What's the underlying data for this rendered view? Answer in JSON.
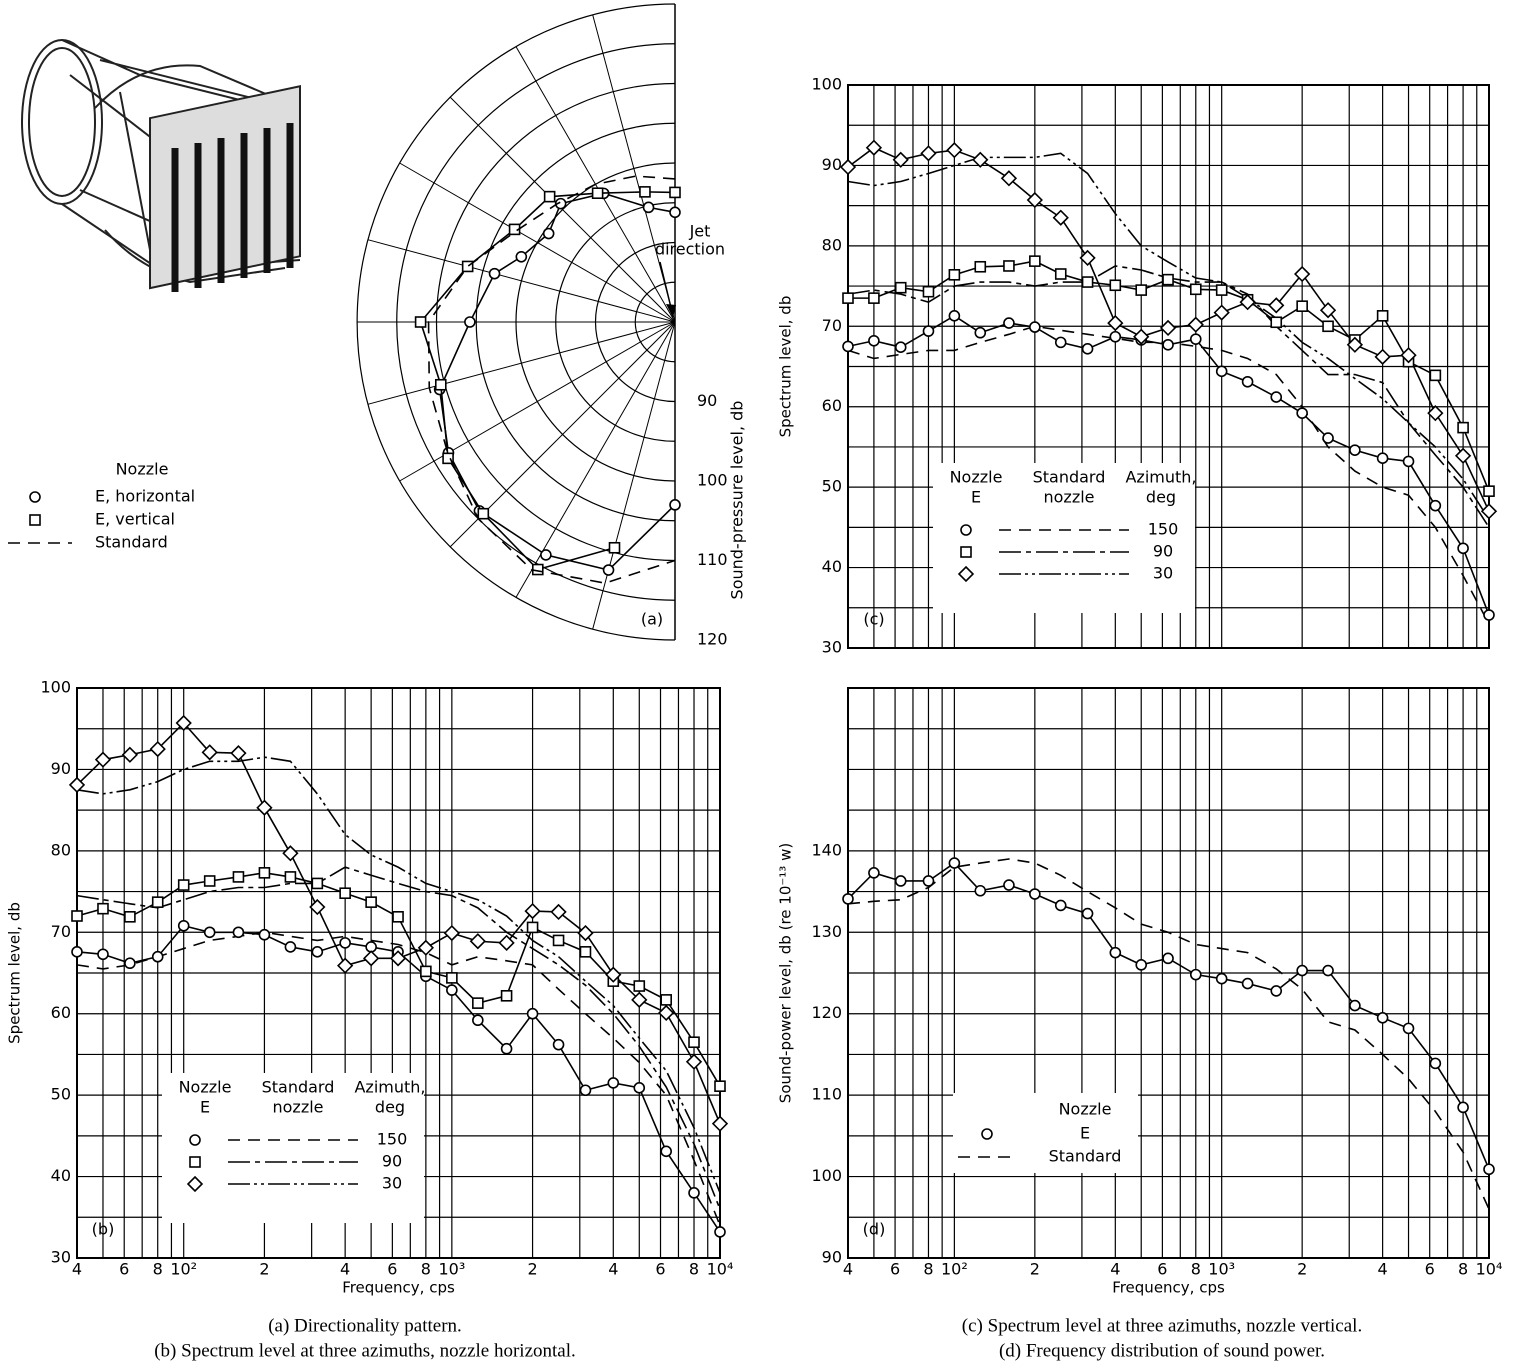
{
  "chart_data": [
    {
      "type": "polar",
      "legend_title": "Nozzle",
      "jet_label": [
        "Jet",
        "direction"
      ],
      "panel_label": "(a)",
      "r_label": "Sound-pressure level, db",
      "caption": "(a)  Directionality pattern.",
      "rlim": [
        80,
        120
      ],
      "rticks": [
        90,
        100,
        110,
        120
      ],
      "rminor": [
        85,
        95,
        105,
        115
      ],
      "thetagrid": [
        15,
        30,
        45,
        60,
        75,
        90,
        105,
        120,
        135,
        150,
        165
      ],
      "series": [
        {
          "name": "E, horizontal",
          "marker": "circle",
          "color": "#000",
          "theta": [
            0,
            13,
            29,
            44,
            55,
            67,
            75,
            90,
            106,
            120,
            134,
            151,
            165,
            180
          ],
          "values": [
            93.8,
            94.8,
            98.5,
            100.7,
            99.4,
            101,
            103.5,
            105.8,
            110.8,
            112.9,
            114.2,
            113.5,
            112.3,
            103
          ]
        },
        {
          "name": "E, vertical",
          "marker": "square",
          "color": "#000",
          "theta": [
            0,
            13,
            31,
            45,
            60,
            75,
            90,
            105,
            121,
            135,
            151,
            165
          ],
          "values": [
            96.3,
            96.8,
            98.9,
            102.3,
            103.3,
            107,
            112,
            110.5,
            113.3,
            114.1,
            115.6,
            109.4
          ]
        },
        {
          "name": "Standard",
          "dash": "12,8",
          "color": "#000",
          "theta": [
            0,
            15,
            30,
            45,
            60,
            75,
            90,
            105,
            120,
            135,
            150,
            165,
            180
          ],
          "values": [
            98,
            99,
            100,
            101,
            103,
            107,
            111,
            112,
            113,
            115,
            116,
            114,
            110
          ]
        }
      ]
    },
    {
      "type": "line",
      "panel_label": "(b)",
      "caption": "(b)  Spectrum level at three azimuths, nozzle horizontal.",
      "y_label": "Spectrum level, db",
      "x_label": "Frequency, cps",
      "xscale": "log",
      "xlim": [
        40,
        10000
      ],
      "ylim": [
        30,
        100
      ],
      "xticks": [
        {
          "value": 40,
          "label": "4"
        },
        {
          "value": 60,
          "label": "6"
        },
        {
          "value": 80,
          "label": "8"
        },
        {
          "value": 100,
          "label": "10²"
        },
        {
          "value": 200,
          "label": "2"
        },
        {
          "value": 400,
          "label": "4"
        },
        {
          "value": 600,
          "label": "6"
        },
        {
          "value": 800,
          "label": "8"
        },
        {
          "value": 1000,
          "label": "10³"
        },
        {
          "value": 2000,
          "label": "2"
        },
        {
          "value": 4000,
          "label": "4"
        },
        {
          "value": 6000,
          "label": "6"
        },
        {
          "value": 8000,
          "label": "8"
        },
        {
          "value": 10000,
          "label": "10⁴"
        }
      ],
      "xgrid": [
        40,
        50,
        60,
        70,
        80,
        90,
        100,
        200,
        300,
        400,
        500,
        600,
        700,
        800,
        900,
        1000,
        2000,
        3000,
        4000,
        5000,
        6000,
        7000,
        8000,
        9000,
        10000
      ],
      "yticks": [
        30,
        40,
        50,
        60,
        70,
        80,
        90,
        100
      ],
      "ygrid": [
        30,
        35,
        40,
        45,
        50,
        55,
        60,
        65,
        70,
        75,
        80,
        85,
        90,
        95,
        100
      ],
      "legend": "lower left",
      "legend_columns": [
        [
          "Nozzle",
          "E"
        ],
        [
          "Standard",
          "nozzle"
        ],
        [
          "Azimuth,",
          "deg"
        ]
      ],
      "x": [
        40,
        50,
        63,
        80,
        100,
        125,
        160,
        200,
        250,
        315,
        400,
        500,
        630,
        800,
        1000,
        1250,
        1600,
        2000,
        2500,
        3150,
        4000,
        5000,
        6300,
        8000,
        10000
      ],
      "series": [
        {
          "name": "150",
          "marker": "circle",
          "dash": "12,8",
          "color": "#000",
          "values": [
            67.6,
            67.3,
            66.2,
            67,
            70.8,
            70,
            70,
            69.7,
            68.2,
            67.6,
            68.7,
            68.2,
            67.6,
            64.6,
            62.9,
            59.2,
            55.7,
            60,
            56.2,
            50.6,
            51.5,
            50.9,
            43.1,
            38,
            33.2
          ],
          "standard": [
            66,
            65.5,
            66,
            67,
            68,
            69,
            69.5,
            70,
            69.5,
            69,
            69.5,
            69,
            68.5,
            67.5,
            66,
            67,
            66.5,
            66,
            63,
            60,
            57,
            54,
            50,
            42,
            34
          ]
        },
        {
          "name": "90",
          "marker": "square",
          "dash": "22,5,5,5",
          "color": "#000",
          "values": [
            72,
            72.9,
            71.9,
            73.7,
            75.8,
            76.3,
            76.8,
            77.3,
            76.8,
            76,
            74.8,
            73.7,
            71.9,
            65.2,
            64.4,
            61.3,
            62.2,
            70.6,
            69,
            67.6,
            64,
            63.4,
            61.7,
            56.5,
            51.1
          ],
          "standard": [
            74.5,
            74,
            73.5,
            73,
            74,
            75,
            75.5,
            75.5,
            76,
            76,
            78,
            77,
            76,
            75,
            74.5,
            73,
            70,
            68,
            66,
            63.5,
            60,
            56,
            51,
            44,
            36
          ]
        },
        {
          "name": "30",
          "marker": "diamond",
          "dash": "22,4,3,4,3,4",
          "color": "#000",
          "values": [
            88.1,
            91.2,
            91.8,
            92.5,
            95.7,
            92.1,
            92,
            85.3,
            79.7,
            73.1,
            65.9,
            66.8,
            66.8,
            68.1,
            69.9,
            68.9,
            68.7,
            72.6,
            72.5,
            69.9,
            64.8,
            61.7,
            60.1,
            54.1,
            46.5
          ],
          "standard": [
            87.5,
            87,
            87.5,
            88.5,
            90,
            91,
            91,
            91.5,
            91,
            87,
            82,
            79.5,
            78,
            76,
            75,
            74,
            72,
            69,
            67,
            64,
            61,
            57,
            53,
            46,
            38
          ]
        }
      ]
    },
    {
      "type": "line",
      "panel_label": "(c)",
      "caption": "(c)  Spectrum level at three azimuths, nozzle vertical.",
      "y_label": "Spectrum level, db",
      "xscale": "log",
      "xlim": [
        40,
        10000
      ],
      "ylim": [
        30,
        100
      ],
      "xgrid": [
        40,
        50,
        60,
        70,
        80,
        90,
        100,
        200,
        300,
        400,
        500,
        600,
        700,
        800,
        900,
        1000,
        2000,
        3000,
        4000,
        5000,
        6000,
        7000,
        8000,
        9000,
        10000
      ],
      "yticks": [
        30,
        40,
        50,
        60,
        70,
        80,
        90,
        100
      ],
      "ygrid": [
        30,
        35,
        40,
        45,
        50,
        55,
        60,
        65,
        70,
        75,
        80,
        85,
        90,
        95,
        100
      ],
      "legend": "lower left",
      "legend_columns": [
        [
          "Nozzle",
          "E"
        ],
        [
          "Standard",
          "nozzle"
        ],
        [
          "Azimuth,",
          "deg"
        ]
      ],
      "x": [
        40,
        50,
        63,
        80,
        100,
        125,
        160,
        200,
        250,
        315,
        400,
        500,
        630,
        800,
        1000,
        1250,
        1600,
        2000,
        2500,
        3150,
        4000,
        5000,
        6300,
        8000,
        10000
      ],
      "series": [
        {
          "name": "150",
          "marker": "circle",
          "dash": "12,8",
          "color": "#000",
          "values": [
            67.5,
            68.2,
            67.4,
            69.4,
            71.3,
            69.2,
            70.4,
            69.9,
            68,
            67.2,
            68.7,
            68.3,
            67.7,
            68.4,
            64.4,
            63.1,
            61.2,
            59.2,
            56.1,
            54.6,
            53.6,
            53.2,
            47.7,
            42.4,
            34.1
          ],
          "standard": [
            67,
            66,
            66.5,
            67,
            67,
            68,
            69,
            70,
            69.5,
            69,
            68.5,
            68,
            68,
            67.5,
            67,
            66,
            64,
            60,
            55,
            52,
            50,
            49,
            45,
            39,
            33
          ]
        },
        {
          "name": "90",
          "marker": "square",
          "dash": "22,5,5,5",
          "color": "#000",
          "values": [
            73.5,
            73.5,
            74.8,
            74.3,
            76.4,
            77.4,
            77.5,
            78.1,
            76.5,
            75.5,
            75.1,
            74.5,
            75.8,
            74.6,
            74.5,
            73.3,
            70.5,
            72.5,
            70,
            68.3,
            71.3,
            65.6,
            63.9,
            57.4,
            49.5
          ],
          "standard": [
            74,
            74.5,
            74,
            73,
            75,
            75.5,
            75.5,
            75,
            75.5,
            75.5,
            77.5,
            77,
            76,
            75.5,
            75.5,
            74,
            70,
            67,
            64,
            64,
            63,
            58,
            54,
            50,
            45
          ]
        },
        {
          "name": "30",
          "marker": "diamond",
          "dash": "22,4,3,4,3,4",
          "color": "#000",
          "values": [
            89.8,
            92.2,
            90.7,
            91.5,
            91.9,
            90.7,
            88.4,
            85.7,
            83.5,
            78.5,
            70.4,
            68.7,
            69.8,
            70.2,
            71.7,
            73,
            72.6,
            76.5,
            72,
            67.7,
            66.2,
            66.4,
            59.2,
            53.9,
            47
          ],
          "standard": [
            88,
            87.5,
            88,
            89,
            90,
            91,
            91,
            91,
            91.5,
            89,
            84,
            80,
            78,
            76,
            75.5,
            73.5,
            71,
            68,
            66,
            63.5,
            61,
            58,
            55,
            51,
            46
          ]
        }
      ]
    },
    {
      "type": "line",
      "panel_label": "(d)",
      "caption": "(d)  Frequency distribution of sound power.",
      "y_label": "Sound-power level, db  (re 10⁻¹³ w)",
      "x_label": "Frequency, cps",
      "xscale": "log",
      "xlim": [
        40,
        10000
      ],
      "ylim": [
        90,
        160
      ],
      "xticks": [
        {
          "value": 40,
          "label": "4"
        },
        {
          "value": 60,
          "label": "6"
        },
        {
          "value": 80,
          "label": "8"
        },
        {
          "value": 100,
          "label": "10²"
        },
        {
          "value": 200,
          "label": "2"
        },
        {
          "value": 400,
          "label": "4"
        },
        {
          "value": 600,
          "label": "6"
        },
        {
          "value": 800,
          "label": "8"
        },
        {
          "value": 1000,
          "label": "10³"
        },
        {
          "value": 2000,
          "label": "2"
        },
        {
          "value": 4000,
          "label": "4"
        },
        {
          "value": 6000,
          "label": "6"
        },
        {
          "value": 8000,
          "label": "8"
        },
        {
          "value": 10000,
          "label": "10⁴"
        }
      ],
      "xgrid": [
        40,
        50,
        60,
        70,
        80,
        90,
        100,
        200,
        300,
        400,
        500,
        600,
        700,
        800,
        900,
        1000,
        2000,
        3000,
        4000,
        5000,
        6000,
        7000,
        8000,
        9000,
        10000
      ],
      "yticks": [
        90,
        100,
        110,
        120,
        130,
        140
      ],
      "ygrid": [
        90,
        95,
        100,
        105,
        110,
        115,
        120,
        125,
        130,
        135,
        140,
        145,
        150,
        155,
        160
      ],
      "legend": "lower center",
      "legend_title": "Nozzle",
      "x": [
        40,
        50,
        63,
        80,
        100,
        125,
        160,
        200,
        250,
        315,
        400,
        500,
        630,
        800,
        1000,
        1250,
        1600,
        2000,
        2500,
        3150,
        4000,
        5000,
        6300,
        8000,
        10000
      ],
      "series": [
        {
          "name": "E",
          "marker": "circle",
          "color": "#000",
          "values": [
            134.1,
            137.3,
            136.3,
            136.3,
            138.5,
            135.1,
            135.8,
            134.7,
            133.3,
            132.3,
            127.5,
            126,
            126.8,
            124.8,
            124.3,
            123.7,
            122.8,
            125.3,
            125.3,
            121,
            119.5,
            118.2,
            113.9,
            108.5,
            100.9
          ]
        },
        {
          "name": "Standard",
          "dash": "12,8",
          "color": "#000",
          "values": [
            133.5,
            133.8,
            134,
            135.5,
            138,
            138.5,
            139,
            138.5,
            137,
            135,
            133,
            131,
            130,
            128.5,
            128,
            127.5,
            125.5,
            123,
            119,
            118,
            115,
            112,
            108,
            103,
            96
          ]
        }
      ]
    }
  ]
}
